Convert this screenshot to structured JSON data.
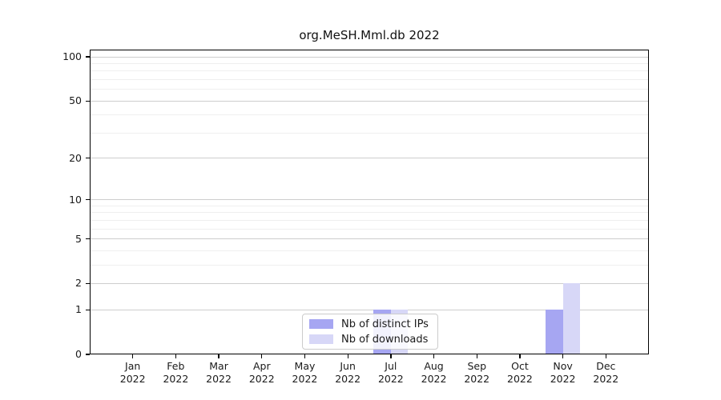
{
  "chart_data": {
    "type": "bar",
    "title": "org.MeSH.Mml.db 2022",
    "x_tick_months": [
      "Jan",
      "Feb",
      "Mar",
      "Apr",
      "May",
      "Jun",
      "Jul",
      "Aug",
      "Sep",
      "Oct",
      "Nov",
      "Dec"
    ],
    "x_tick_year": "2022",
    "series": [
      {
        "name": "Nb of distinct IPs",
        "color": "#a6a6f2",
        "values": [
          0,
          0,
          0,
          0,
          0,
          0,
          1,
          0,
          0,
          0,
          1,
          0
        ]
      },
      {
        "name": "Nb of downloads",
        "color": "#d7d7f7",
        "values": [
          0,
          0,
          0,
          0,
          0,
          0,
          1,
          0,
          0,
          0,
          2,
          0
        ]
      }
    ],
    "yscale": "log1p",
    "ylim": [
      0,
      112
    ],
    "yticks": [
      0,
      1,
      2,
      5,
      10,
      20,
      50,
      100
    ],
    "yticks_minor": [
      3,
      4,
      6,
      7,
      8,
      9,
      30,
      40,
      60,
      70,
      80,
      90
    ],
    "grid": true,
    "legend_position": "lower center (inside plot)",
    "colors": {
      "grid_major": "#cdcdcd",
      "grid_minor": "#efefef",
      "axis": "#000000",
      "text": "#1a1a1a",
      "background": "#ffffff"
    }
  }
}
